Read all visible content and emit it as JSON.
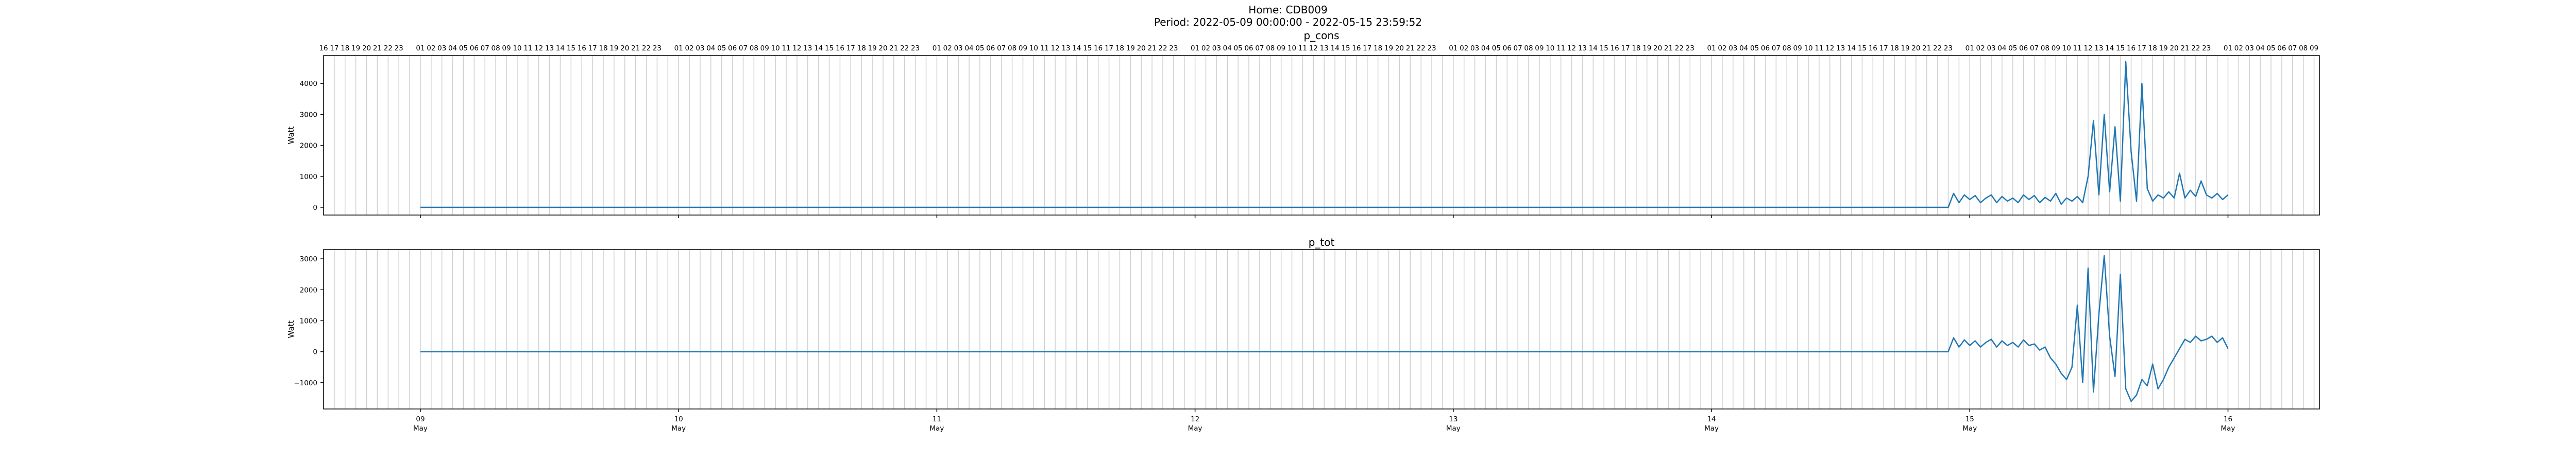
{
  "figure": {
    "title_line1": "Home: CDB009",
    "title_line2": "Period: 2022-05-09 00:00:00 - 2022-05-15 23:59:52"
  },
  "chart_data": [
    {
      "type": "line",
      "title": "p_cons",
      "ylabel": "Watt",
      "xlabel": "",
      "x_domain": [
        "2022-05-08 15:00",
        "2022-05-16 08:30"
      ],
      "xlim_hours": [
        -9,
        176.5
      ],
      "ylim": [
        -250,
        4900
      ],
      "yticks": [
        0,
        1000,
        2000,
        3000,
        4000
      ],
      "grid": "vertical hourly lines",
      "line_color": "#1f77b4",
      "hour_ticks_first": "16",
      "series": [
        {
          "x_hours": [
            0,
            142,
            142.5,
            143,
            143.5,
            144,
            144.5,
            145,
            145.5,
            146,
            146.5,
            147,
            147.5,
            148,
            148.5,
            149,
            149.5,
            150,
            150.5,
            151,
            151.5,
            152,
            152.5,
            153,
            153.5,
            154,
            154.5,
            155,
            155.5,
            156,
            156.5,
            157,
            157.5,
            158,
            158.5,
            159,
            159.5,
            160,
            160.5,
            161,
            161.5,
            162,
            162.5,
            163,
            163.5,
            164,
            164.5,
            165,
            165.5,
            166,
            166.5,
            167,
            167.5,
            168
          ],
          "y": [
            0,
            0,
            450,
            150,
            400,
            250,
            380,
            150,
            300,
            400,
            150,
            350,
            200,
            300,
            150,
            400,
            250,
            380,
            150,
            320,
            200,
            450,
            100,
            300,
            200,
            350,
            150,
            1000,
            2800,
            400,
            3000,
            500,
            2600,
            200,
            4700,
            1800,
            200,
            4000,
            600,
            200,
            400,
            300,
            500,
            300,
            1100,
            300,
            550,
            350,
            850,
            400,
            300,
            450,
            250,
            400
          ]
        }
      ]
    },
    {
      "type": "line",
      "title": "p_tot",
      "ylabel": "Watt",
      "xlabel": "",
      "x_domain": [
        "2022-05-08 15:00",
        "2022-05-16 08:30"
      ],
      "xlim_hours": [
        -9,
        176.5
      ],
      "ylim": [
        -1850,
        3300
      ],
      "yticks": [
        -1000,
        0,
        1000,
        2000,
        3000
      ],
      "grid": "vertical hourly lines",
      "line_color": "#1f77b4",
      "xticks": [
        {
          "date": "09",
          "month": "May",
          "hour": 0
        },
        {
          "date": "10",
          "month": "May",
          "hour": 24
        },
        {
          "date": "11",
          "month": "May",
          "hour": 48
        },
        {
          "date": "12",
          "month": "May",
          "hour": 72
        },
        {
          "date": "13",
          "month": "May",
          "hour": 96
        },
        {
          "date": "14",
          "month": "May",
          "hour": 120
        },
        {
          "date": "15",
          "month": "May",
          "hour": 144
        },
        {
          "date": "16",
          "month": "May",
          "hour": 168
        }
      ],
      "series": [
        {
          "x_hours": [
            0,
            142,
            142.5,
            143,
            143.5,
            144,
            144.5,
            145,
            145.5,
            146,
            146.5,
            147,
            147.5,
            148,
            148.5,
            149,
            149.5,
            150,
            150.5,
            151,
            151.5,
            152,
            152.5,
            153,
            153.5,
            154,
            154.5,
            155,
            155.5,
            156,
            156.5,
            157,
            157.5,
            158,
            158.5,
            159,
            159.5,
            160,
            160.5,
            161,
            161.5,
            162,
            162.5,
            163,
            163.5,
            164,
            164.5,
            165,
            165.5,
            166,
            166.5,
            167,
            167.5,
            168
          ],
          "y": [
            0,
            0,
            450,
            150,
            380,
            200,
            350,
            150,
            300,
            400,
            150,
            350,
            200,
            300,
            150,
            380,
            200,
            250,
            50,
            150,
            -200,
            -400,
            -700,
            -900,
            -500,
            1500,
            -1000,
            2700,
            -1300,
            1200,
            3100,
            500,
            -800,
            2500,
            -1200,
            -1600,
            -1400,
            -900,
            -1100,
            -400,
            -1200,
            -900,
            -500,
            -200,
            100,
            400,
            300,
            500,
            350,
            400,
            500,
            300,
            450,
            100
          ]
        }
      ]
    }
  ]
}
